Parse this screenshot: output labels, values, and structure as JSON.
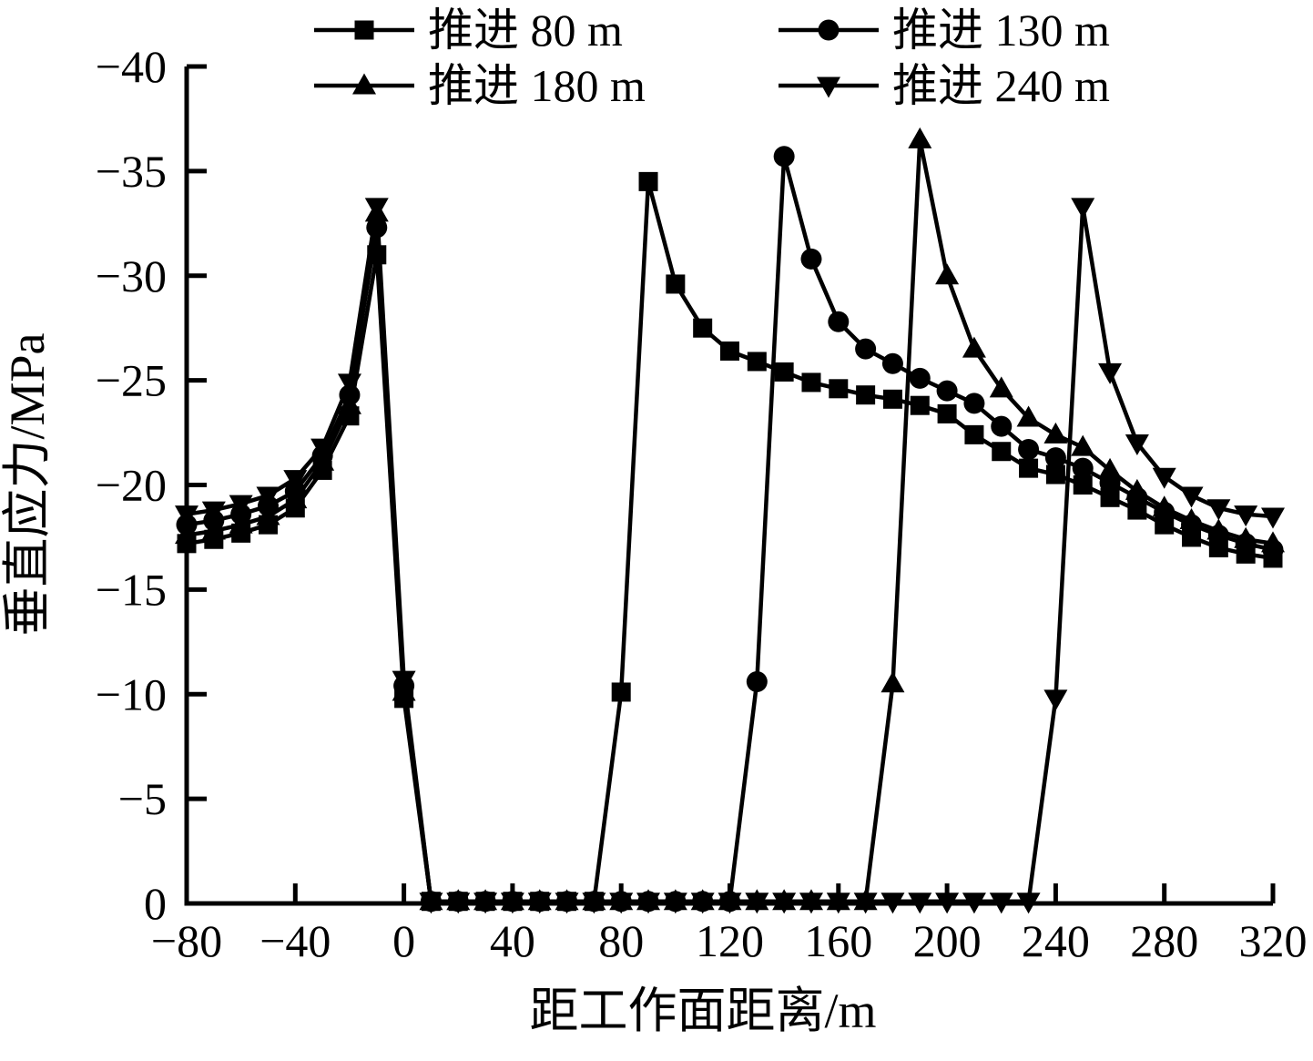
{
  "figure": {
    "background": "#ffffff",
    "ink_color": "#000000"
  },
  "chart_data": {
    "type": "line",
    "title": "",
    "xlabel": "距工作面距离/m",
    "ylabel": "垂直应力/MPa",
    "grid": false,
    "legend_position": "top",
    "x_axis": {
      "min": -80,
      "max": 320,
      "tick_values": [
        -80,
        -40,
        0,
        40,
        80,
        120,
        160,
        200,
        240,
        280,
        320
      ],
      "tick_labels": [
        "−80",
        "−40",
        "0",
        "40",
        "80",
        "120",
        "160",
        "200",
        "240",
        "280",
        "320"
      ]
    },
    "y_axis": {
      "top_value": -40,
      "bottom_value": 0,
      "inverted": true,
      "tick_values": [
        -40,
        -35,
        -30,
        -25,
        -20,
        -15,
        -10,
        -5,
        0
      ],
      "tick_labels": [
        "−40",
        "−35",
        "−30",
        "−25",
        "−20",
        "−15",
        "−10",
        "−5",
        "0"
      ]
    },
    "series": [
      {
        "id": "advance-80m",
        "name": "推进 80 m",
        "marker": "square",
        "color": "#000000",
        "points": [
          [
            -80,
            -17.2
          ],
          [
            -70,
            -17.4
          ],
          [
            -60,
            -17.7
          ],
          [
            -50,
            -18.1
          ],
          [
            -40,
            -18.9
          ],
          [
            -30,
            -20.7
          ],
          [
            -20,
            -23.3
          ],
          [
            -10,
            -31.0
          ],
          [
            0,
            -9.8
          ],
          [
            10,
            -0.1
          ],
          [
            20,
            -0.1
          ],
          [
            30,
            -0.1
          ],
          [
            40,
            -0.1
          ],
          [
            50,
            -0.1
          ],
          [
            60,
            -0.1
          ],
          [
            70,
            -0.1
          ],
          [
            80,
            -10.1
          ],
          [
            90,
            -34.5
          ],
          [
            100,
            -29.6
          ],
          [
            110,
            -27.5
          ],
          [
            120,
            -26.4
          ],
          [
            130,
            -25.9
          ],
          [
            140,
            -25.4
          ],
          [
            150,
            -24.9
          ],
          [
            160,
            -24.6
          ],
          [
            170,
            -24.3
          ],
          [
            180,
            -24.1
          ],
          [
            190,
            -23.8
          ],
          [
            200,
            -23.4
          ],
          [
            210,
            -22.4
          ],
          [
            220,
            -21.6
          ],
          [
            230,
            -20.8
          ],
          [
            240,
            -20.5
          ],
          [
            250,
            -20.0
          ],
          [
            260,
            -19.4
          ],
          [
            270,
            -18.8
          ],
          [
            280,
            -18.1
          ],
          [
            290,
            -17.5
          ],
          [
            300,
            -17.0
          ],
          [
            310,
            -16.7
          ],
          [
            320,
            -16.5
          ]
        ]
      },
      {
        "id": "advance-130m",
        "name": "推进 130 m",
        "marker": "circle",
        "color": "#000000",
        "points": [
          [
            -80,
            -18.1
          ],
          [
            -70,
            -18.3
          ],
          [
            -60,
            -18.6
          ],
          [
            -50,
            -19.0
          ],
          [
            -40,
            -19.7
          ],
          [
            -30,
            -21.4
          ],
          [
            -20,
            -24.3
          ],
          [
            -10,
            -32.3
          ],
          [
            0,
            -10.4
          ],
          [
            10,
            -0.1
          ],
          [
            20,
            -0.1
          ],
          [
            30,
            -0.1
          ],
          [
            40,
            -0.1
          ],
          [
            50,
            -0.1
          ],
          [
            60,
            -0.1
          ],
          [
            70,
            -0.1
          ],
          [
            80,
            -0.1
          ],
          [
            90,
            -0.1
          ],
          [
            100,
            -0.1
          ],
          [
            110,
            -0.1
          ],
          [
            120,
            -0.1
          ],
          [
            130,
            -10.6
          ],
          [
            140,
            -35.7
          ],
          [
            150,
            -30.8
          ],
          [
            160,
            -27.8
          ],
          [
            170,
            -26.5
          ],
          [
            180,
            -25.8
          ],
          [
            190,
            -25.1
          ],
          [
            200,
            -24.5
          ],
          [
            210,
            -23.9
          ],
          [
            220,
            -22.8
          ],
          [
            230,
            -21.7
          ],
          [
            240,
            -21.3
          ],
          [
            250,
            -20.8
          ],
          [
            260,
            -20.1
          ],
          [
            270,
            -19.4
          ],
          [
            280,
            -18.7
          ],
          [
            290,
            -18.1
          ],
          [
            300,
            -17.6
          ],
          [
            310,
            -17.2
          ],
          [
            320,
            -16.9
          ]
        ]
      },
      {
        "id": "advance-180m",
        "name": "推进 180 m",
        "marker": "triangle-up",
        "color": "#000000",
        "points": [
          [
            -80,
            -17.6
          ],
          [
            -70,
            -17.8
          ],
          [
            -60,
            -18.1
          ],
          [
            -50,
            -18.5
          ],
          [
            -40,
            -19.3
          ],
          [
            -30,
            -21.1
          ],
          [
            -20,
            -23.8
          ],
          [
            -10,
            -33.0
          ],
          [
            0,
            -10.1
          ],
          [
            10,
            -0.1
          ],
          [
            20,
            -0.1
          ],
          [
            30,
            -0.1
          ],
          [
            40,
            -0.1
          ],
          [
            50,
            -0.1
          ],
          [
            60,
            -0.1
          ],
          [
            70,
            -0.1
          ],
          [
            80,
            -0.1
          ],
          [
            90,
            -0.1
          ],
          [
            100,
            -0.1
          ],
          [
            110,
            -0.1
          ],
          [
            120,
            -0.1
          ],
          [
            130,
            -0.1
          ],
          [
            140,
            -0.1
          ],
          [
            150,
            -0.1
          ],
          [
            160,
            -0.1
          ],
          [
            170,
            -0.1
          ],
          [
            180,
            -10.5
          ],
          [
            190,
            -36.5
          ],
          [
            200,
            -30.0
          ],
          [
            210,
            -26.5
          ],
          [
            220,
            -24.6
          ],
          [
            230,
            -23.2
          ],
          [
            240,
            -22.4
          ],
          [
            250,
            -21.8
          ],
          [
            260,
            -20.7
          ],
          [
            270,
            -19.7
          ],
          [
            280,
            -18.9
          ],
          [
            290,
            -18.3
          ],
          [
            300,
            -17.8
          ],
          [
            310,
            -17.4
          ],
          [
            320,
            -17.2
          ]
        ]
      },
      {
        "id": "advance-240m",
        "name": "推进 240 m",
        "marker": "triangle-down",
        "color": "#000000",
        "points": [
          [
            -80,
            -18.6
          ],
          [
            -70,
            -18.8
          ],
          [
            -60,
            -19.1
          ],
          [
            -50,
            -19.5
          ],
          [
            -40,
            -20.3
          ],
          [
            -30,
            -21.8
          ],
          [
            -20,
            -24.9
          ],
          [
            -10,
            -33.3
          ],
          [
            0,
            -10.7
          ],
          [
            10,
            -0.1
          ],
          [
            20,
            -0.1
          ],
          [
            30,
            -0.1
          ],
          [
            40,
            -0.1
          ],
          [
            50,
            -0.1
          ],
          [
            60,
            -0.1
          ],
          [
            70,
            -0.1
          ],
          [
            80,
            -0.1
          ],
          [
            90,
            -0.1
          ],
          [
            100,
            -0.1
          ],
          [
            110,
            -0.1
          ],
          [
            120,
            -0.1
          ],
          [
            130,
            -0.1
          ],
          [
            140,
            -0.1
          ],
          [
            150,
            -0.1
          ],
          [
            160,
            -0.1
          ],
          [
            170,
            -0.1
          ],
          [
            180,
            -0.1
          ],
          [
            190,
            -0.1
          ],
          [
            200,
            -0.1
          ],
          [
            210,
            -0.1
          ],
          [
            220,
            -0.1
          ],
          [
            230,
            -0.1
          ],
          [
            240,
            -9.8
          ],
          [
            250,
            -33.3
          ],
          [
            260,
            -25.4
          ],
          [
            270,
            -22.0
          ],
          [
            280,
            -20.4
          ],
          [
            290,
            -19.5
          ],
          [
            300,
            -18.9
          ],
          [
            310,
            -18.6
          ],
          [
            320,
            -18.5
          ]
        ]
      }
    ]
  }
}
